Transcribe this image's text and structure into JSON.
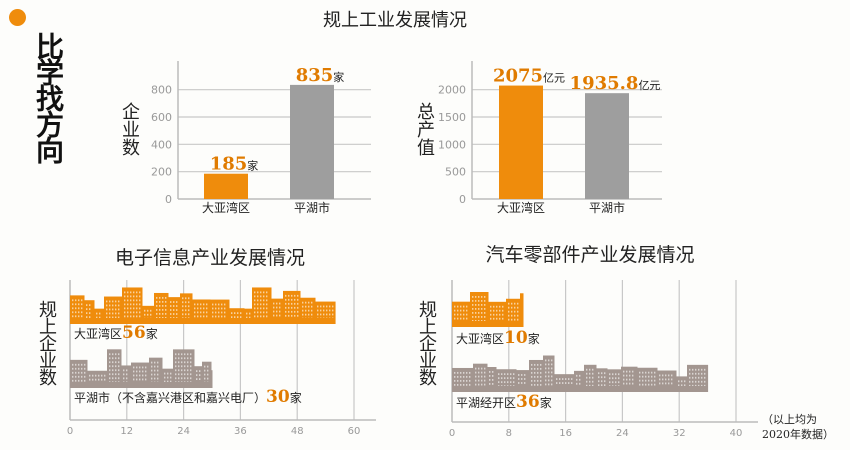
{
  "header": {
    "slogan": "比学找方向",
    "accent": "#ef8c0c"
  },
  "note": {
    "line1": "（以上均为",
    "line2": "2020年数据）"
  },
  "chart_data": [
    {
      "type": "bar",
      "group_title": "规上工业发展情况",
      "ylabel": "企业数",
      "categories": [
        "大亚湾区",
        "平湖市"
      ],
      "values": [
        185,
        835
      ],
      "value_labels": [
        "185",
        "835"
      ],
      "unit": "家",
      "ylim": [
        0,
        900
      ],
      "yticks": [
        0,
        200,
        400,
        600,
        800
      ],
      "colors": [
        "#ef8c0c",
        "#9e9e9e"
      ],
      "grid": true
    },
    {
      "type": "bar",
      "ylabel": "总产值",
      "categories": [
        "大亚湾区",
        "平湖市"
      ],
      "values": [
        2075,
        1935.8
      ],
      "value_labels": [
        "2075",
        "1935.8"
      ],
      "unit": "亿元",
      "ylim": [
        0,
        2250
      ],
      "yticks": [
        0,
        500,
        1000,
        1500,
        2000
      ],
      "colors": [
        "#ef8c0c",
        "#9e9e9e"
      ],
      "grid": true
    },
    {
      "type": "bar",
      "orientation": "horizontal",
      "title": "电子信息产业发展情况",
      "ylabel": "规上企业数",
      "categories": [
        "大亚湾区",
        "平湖市（不含嘉兴港区和嘉兴电厂）"
      ],
      "values": [
        56,
        30
      ],
      "value_labels": [
        "56",
        "30"
      ],
      "unit": "家",
      "xlim": [
        0,
        60
      ],
      "xticks": [
        0,
        12,
        24,
        36,
        48,
        60
      ],
      "colors": [
        "#ef8c0c",
        "#a39690"
      ],
      "grid": true
    },
    {
      "type": "bar",
      "orientation": "horizontal",
      "title": "汽车零部件产业发展情况",
      "ylabel": "规上企业数",
      "categories": [
        "大亚湾区",
        "平湖经开区"
      ],
      "values": [
        10,
        36
      ],
      "value_labels": [
        "10",
        "36"
      ],
      "unit": "家",
      "xlim": [
        0,
        40
      ],
      "xticks": [
        0,
        8,
        16,
        24,
        32,
        40
      ],
      "colors": [
        "#ef8c0c",
        "#a39690"
      ],
      "grid": true
    }
  ]
}
